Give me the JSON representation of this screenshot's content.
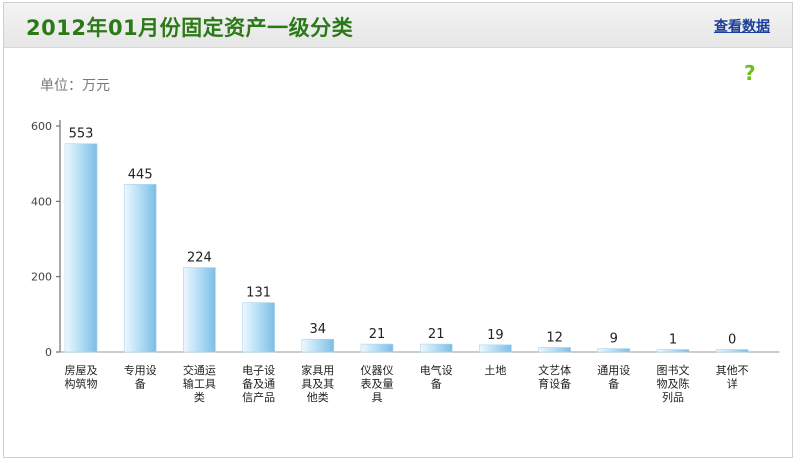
{
  "header": {
    "title": "2012年01月份固定资产一级分类",
    "view_data_link": "查看数据"
  },
  "unit_label": "单位：万元",
  "help_icon": "?",
  "chart_data": {
    "type": "bar",
    "title": "2012年01月份固定资产一级分类",
    "unit": "万元",
    "categories": [
      [
        "房屋及",
        "构筑物"
      ],
      [
        "专用设",
        "备"
      ],
      [
        "交通运",
        "输工具",
        "类"
      ],
      [
        "电子设",
        "备及通",
        "信产品"
      ],
      [
        "家具用",
        "具及其",
        "他类"
      ],
      [
        "仪器仪",
        "表及量",
        "具"
      ],
      [
        "电气设",
        "备"
      ],
      [
        "土地"
      ],
      [
        "文艺体",
        "育设备"
      ],
      [
        "通用设",
        "备"
      ],
      [
        "图书文",
        "物及陈",
        "列品"
      ],
      [
        "其他不",
        "详"
      ]
    ],
    "values": [
      553,
      445,
      224,
      131,
      34,
      21,
      21,
      19,
      12,
      9,
      1,
      0
    ],
    "yticks": [
      0,
      200,
      400,
      600
    ],
    "ylim": [
      0,
      600
    ],
    "grid": false,
    "legend": "none",
    "colors": {
      "bar_light": "#eef8fe",
      "bar_mid": "#b9e0f6",
      "bar_dark": "#7cbde6",
      "axis": "#555555"
    }
  }
}
